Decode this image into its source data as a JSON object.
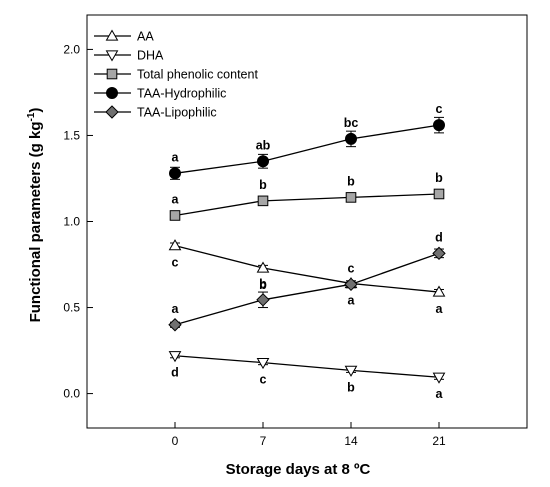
{
  "chart_data": {
    "type": "line",
    "xlabel": "Storage days at 8 ºC",
    "ylabel_main": "Functional parameters (g kg",
    "ylabel_sup": "-1",
    "ylabel_end": ")",
    "x": [
      0,
      7,
      14,
      21
    ],
    "x_tick_labels": [
      "0",
      "7",
      "14",
      "21"
    ],
    "xlim": [
      -7,
      28
    ],
    "ylim": [
      -0.2,
      2.2
    ],
    "y_ticks": [
      0.0,
      0.5,
      1.0,
      1.5,
      2.0
    ],
    "y_tick_labels": [
      "0.0",
      "0.5",
      "1.0",
      "1.5",
      "2.0"
    ],
    "legend_position": "top-left",
    "grid": false,
    "series": [
      {
        "name": "AA",
        "marker": "triangle-up",
        "fill": "#ffffff",
        "values": [
          0.86,
          0.73,
          0.64,
          0.59
        ],
        "errors": [
          0.015,
          0.015,
          0.015,
          0.015
        ],
        "letters": [
          "c",
          "b",
          "a",
          "a"
        ],
        "letter_side": "below"
      },
      {
        "name": "DHA",
        "marker": "triangle-down",
        "fill": "#ffffff",
        "values": [
          0.22,
          0.18,
          0.135,
          0.095
        ],
        "errors": [
          0.012,
          0.012,
          0.012,
          0.012
        ],
        "letters": [
          "d",
          "c",
          "b",
          "a"
        ],
        "letter_side": "below"
      },
      {
        "name": "Total phenolic content",
        "marker": "square",
        "fill": "#a6a6a6",
        "values": [
          1.035,
          1.12,
          1.14,
          1.16
        ],
        "errors": [
          0.02,
          0.02,
          0.02,
          0.02
        ],
        "letters": [
          "a",
          "b",
          "b",
          "b"
        ],
        "letter_side": "above"
      },
      {
        "name": "TAA-Hydrophilic",
        "marker": "circle",
        "fill": "#000000",
        "values": [
          1.28,
          1.35,
          1.48,
          1.56
        ],
        "errors": [
          0.035,
          0.04,
          0.045,
          0.045
        ],
        "letters": [
          "a",
          "ab",
          "bc",
          "c"
        ],
        "letter_side": "above"
      },
      {
        "name": "TAA-Lipophilic",
        "marker": "diamond",
        "fill": "#707070",
        "values": [
          0.4,
          0.545,
          0.635,
          0.815
        ],
        "errors": [
          0.015,
          0.045,
          0.02,
          0.025
        ],
        "letters": [
          "a",
          "b",
          "c",
          "d"
        ],
        "letter_side": "above"
      }
    ]
  }
}
